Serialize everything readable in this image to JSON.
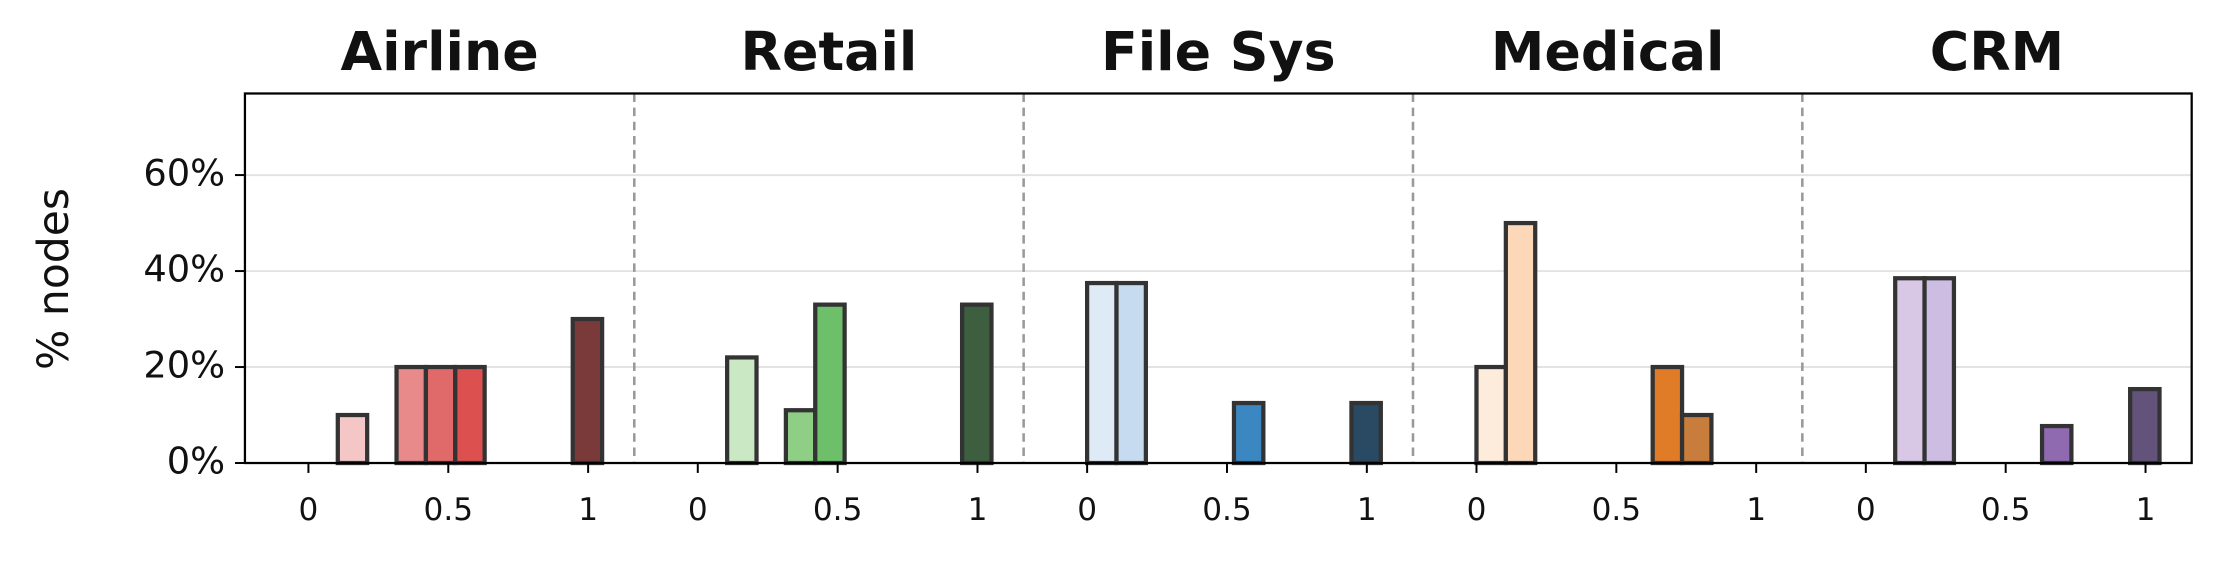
{
  "chart_data": [
    {
      "type": "histogram",
      "title": "Airline",
      "y_label": "% nodes",
      "ylim": [
        0,
        77
      ],
      "yticks": [
        {
          "value": 0,
          "label": "0%"
        },
        {
          "value": 20,
          "label": "20%"
        },
        {
          "value": 40,
          "label": "40%"
        },
        {
          "value": 60,
          "label": "60%"
        }
      ],
      "grid": true,
      "xlim": [
        -0.227,
        1.165
      ],
      "xticks": [
        0,
        0.5,
        1
      ],
      "bins": [
        0,
        0.105,
        0.21,
        0.315,
        0.42,
        0.525,
        0.63,
        0.735,
        0.84,
        0.945,
        1.05
      ],
      "values": [
        0,
        10,
        0,
        20,
        20,
        20,
        0,
        0,
        0,
        30
      ],
      "colors": [
        "#fbe0e0",
        "#f4c6c6",
        "#eea6a6",
        "#e88a8a",
        "#e06a6a",
        "#dd5050",
        "#c44444",
        "#a83c3c",
        "#903a3a",
        "#7b3a3a"
      ]
    },
    {
      "type": "histogram",
      "title": "Retail",
      "xlim": [
        -0.227,
        1.165
      ],
      "xticks": [
        0,
        0.5,
        1
      ],
      "bins": [
        0,
        0.105,
        0.21,
        0.315,
        0.42,
        0.525,
        0.63,
        0.735,
        0.84,
        0.945,
        1.05
      ],
      "values": [
        0,
        22,
        0,
        11,
        33,
        0,
        0,
        0,
        0,
        33
      ],
      "colors": [
        "#e3f3de",
        "#cbe8c4",
        "#a9dba0",
        "#8fce85",
        "#6dbf6a",
        "#58a857",
        "#4a9049",
        "#43784a",
        "#3f6a44",
        "#3d5e3f"
      ]
    },
    {
      "type": "histogram",
      "title": "File Sys",
      "xlim": [
        -0.227,
        1.165
      ],
      "xticks": [
        0,
        0.5,
        1
      ],
      "bins": [
        0,
        0.105,
        0.21,
        0.315,
        0.42,
        0.525,
        0.63,
        0.735,
        0.84,
        0.945,
        1.05
      ],
      "values": [
        37.5,
        37.5,
        0,
        0,
        0,
        12.5,
        0,
        0,
        0,
        12.5
      ],
      "colors": [
        "#deebf7",
        "#c6dbef",
        "#a6c8e4",
        "#7fb0d8",
        "#5a9acb",
        "#3b87c2",
        "#3371a0",
        "#2f5f84",
        "#2d5170",
        "#2a4a63"
      ]
    },
    {
      "type": "histogram",
      "title": "Medical",
      "xlim": [
        -0.227,
        1.165
      ],
      "xticks": [
        0,
        0.5,
        1
      ],
      "bins": [
        0,
        0.105,
        0.21,
        0.315,
        0.42,
        0.525,
        0.63,
        0.735,
        0.84,
        0.945,
        1.05
      ],
      "values": [
        20,
        50,
        0,
        0,
        0,
        0,
        20,
        10,
        0,
        0
      ],
      "colors": [
        "#fdebdc",
        "#fdd8b8",
        "#fcc190",
        "#f9a564",
        "#f18b3e",
        "#e67e2c",
        "#e07b28",
        "#c97d3c",
        "#b26f36",
        "#9c6232"
      ]
    },
    {
      "type": "histogram",
      "title": "CRM",
      "xlim": [
        -0.227,
        1.165
      ],
      "xticks": [
        0,
        0.5,
        1
      ],
      "bins": [
        0,
        0.105,
        0.21,
        0.315,
        0.42,
        0.525,
        0.63,
        0.735,
        0.84,
        0.945,
        1.05
      ],
      "values": [
        0,
        38.5,
        38.5,
        0,
        0,
        0,
        7.7,
        0,
        0,
        15.4
      ],
      "colors": [
        "#ece4f3",
        "#d8c8e6",
        "#cdbde2",
        "#b9a3d4",
        "#a58bc6",
        "#9574b6",
        "#8f6ab0",
        "#7d6098",
        "#6f5887",
        "#63537a"
      ]
    }
  ]
}
